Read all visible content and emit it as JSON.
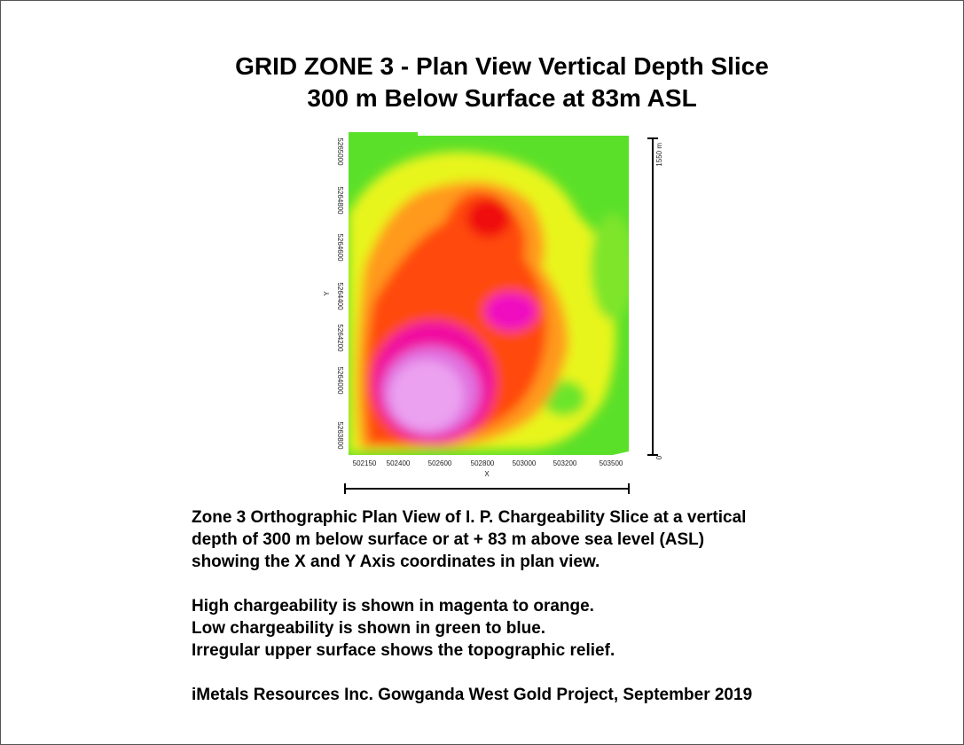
{
  "header": {
    "title_lines": [
      "GRID ZONE 3 - Plan View Vertical Depth Slice",
      "300 m Below Surface at 83m ASL"
    ]
  },
  "map": {
    "y_axis_label": "Y",
    "x_axis_label": "X",
    "y_tick_labels": [
      "5265000",
      "5264800",
      "5264600",
      "5264400",
      "5264200",
      "5264000",
      "5263800"
    ],
    "x_tick_labels": [
      "502150",
      "502400",
      "502600",
      "502800",
      "503000",
      "503200",
      "503500"
    ],
    "scale_top": "1550 m",
    "scale_bottom": "0"
  },
  "caption": {
    "paragraphs": [
      [
        "Zone 3 Orthographic Plan View of I. P. Chargeability Slice at a vertical",
        "depth of 300 m below surface or at + 83 m above sea level (ASL)",
        "showing the X and Y Axis coordinates in plan view."
      ],
      [
        "High chargeability is shown in magenta to orange.",
        "Low chargeability is shown in green to blue.",
        "Irregular upper surface shows the topographic relief."
      ],
      [
        "iMetals Resources Inc. Gowganda West Gold Project, September 2019"
      ]
    ]
  }
}
